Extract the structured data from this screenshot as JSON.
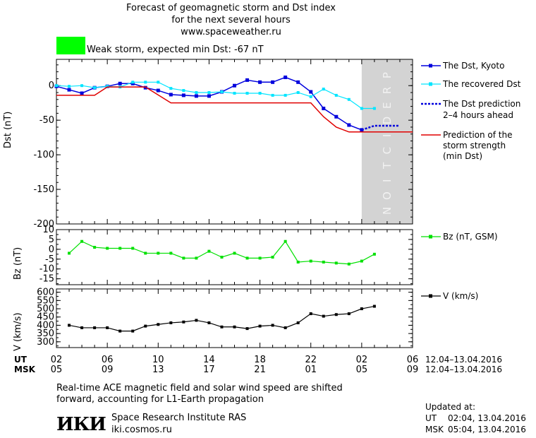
{
  "header": {
    "title_lines": [
      "Forecast of geomagnetic storm and Dst index",
      "for the next several hours",
      "www.spaceweather.ru"
    ],
    "storm_text": "Weak storm, expected min Dst: -67 nT"
  },
  "colors": {
    "dst_kyoto": "#0000dd",
    "dst_recovered": "#00e5ff",
    "dst_prediction": "#0000dd",
    "storm_strength": "#e00000",
    "bz": "#00e000",
    "v": "#000000",
    "prediction_band": "#d3d3d3",
    "storm_swatch": "#00ff00"
  },
  "prediction_label": "PREDICTION",
  "legend": {
    "dst_kyoto": "The Dst, Kyoto",
    "dst_recovered": "The recovered Dst",
    "dst_prediction_1": "The Dst prediction",
    "dst_prediction_2": "2–4 hours ahead",
    "storm_1": "Prediction of the",
    "storm_2": "storm strength",
    "storm_3": "(min Dst)",
    "bz": "Bz (nT, GSM)",
    "v": "V (km/s)"
  },
  "time_axis": {
    "ut_label": "UT",
    "msk_label": "MSK",
    "ut_ticks": [
      "02",
      "06",
      "10",
      "14",
      "18",
      "22",
      "02",
      "06"
    ],
    "msk_ticks": [
      "05",
      "09",
      "13",
      "17",
      "21",
      "01",
      "05",
      "09"
    ],
    "ut_range": "12.04–13.04.2016",
    "msk_range": "12.04–13.04.2016"
  },
  "footer": {
    "note_1": "Real-time ACE magnetic field and solar wind speed are shifted",
    "note_2": "forward, accounting for L1-Earth propagation",
    "logo": "ИКИ",
    "institute": "Space Research Institute RAS",
    "site": "iki.cosmos.ru",
    "updated_label": "Updated at:",
    "updated_ut_label": "UT",
    "updated_ut": "02:04, 13.04.2016",
    "updated_msk_label": "MSK",
    "updated_msk": "05:04, 13.04.2016"
  },
  "chart_data": [
    {
      "type": "line",
      "ylabel": "Dst (nT)",
      "x_range_hours_ut": [
        2,
        30
      ],
      "prediction_from_hour": 26.0,
      "ylim": [
        -200,
        38
      ],
      "yticks": [
        0,
        -50,
        -100,
        -150,
        -200
      ],
      "series": [
        {
          "name": "The Dst, Kyoto",
          "x": [
            2,
            3,
            4,
            5,
            6,
            7,
            8,
            9,
            10,
            11,
            12,
            13,
            14,
            15,
            16,
            17,
            18,
            19,
            20,
            21,
            22,
            23,
            24,
            25,
            26
          ],
          "values": [
            -1,
            -6,
            -11,
            -3,
            -1,
            3,
            3,
            -3,
            -7,
            -13,
            -14,
            -15,
            -15,
            -9,
            0,
            8,
            5,
            5,
            12,
            5,
            -9,
            -33,
            -45,
            -57,
            -64
          ]
        },
        {
          "name": "The recovered Dst",
          "x": [
            2,
            3,
            4,
            5,
            6,
            7,
            8,
            9,
            10,
            11,
            12,
            13,
            14,
            15,
            16,
            17,
            18,
            19,
            20,
            21,
            22,
            23,
            24,
            25,
            26,
            27
          ],
          "values": [
            0,
            -1,
            0,
            -3,
            -1,
            -2,
            5,
            5,
            5,
            -4,
            -7,
            -10,
            -10,
            -9,
            -11,
            -11,
            -11,
            -14,
            -14,
            -10,
            -16,
            -5,
            -14,
            -20,
            -33,
            -33
          ]
        },
        {
          "name": "The Dst prediction",
          "x": [
            26,
            27,
            28,
            29
          ],
          "values": [
            -64,
            -58,
            -58,
            -58
          ]
        },
        {
          "name": "Prediction of the storm strength (min Dst)",
          "x": [
            2,
            5,
            6,
            9,
            11,
            22,
            23,
            24,
            25,
            26,
            30
          ],
          "values": [
            -14,
            -14,
            -2,
            -2,
            -25,
            -25,
            -45,
            -60,
            -67,
            -67,
            -67
          ]
        }
      ]
    },
    {
      "type": "line",
      "ylabel": "Bz (nT)",
      "ylim": [
        -18,
        10
      ],
      "yticks": [
        10,
        5,
        0,
        -5,
        -10,
        -15
      ],
      "series": [
        {
          "name": "Bz (nT, GSM)",
          "x": [
            3,
            4,
            5,
            6,
            7,
            8,
            9,
            10,
            11,
            12,
            13,
            14,
            15,
            16,
            17,
            18,
            19,
            20,
            21,
            22,
            23,
            24,
            25,
            26,
            27
          ],
          "values": [
            -2,
            4,
            1,
            0.5,
            0.5,
            0.5,
            -2,
            -2,
            -2,
            -4.5,
            -4.5,
            -1,
            -4,
            -2,
            -4.5,
            -4.5,
            -4,
            4,
            -6.5,
            -6,
            -6.5,
            -7,
            -7.5,
            -6,
            -2.5
          ]
        }
      ]
    },
    {
      "type": "line",
      "ylabel": "V (km/s)",
      "ylim": [
        265,
        620
      ],
      "yticks": [
        600,
        550,
        500,
        450,
        400,
        350,
        300
      ],
      "series": [
        {
          "name": "V (km/s)",
          "x": [
            3,
            4,
            5,
            6,
            7,
            8,
            9,
            10,
            11,
            12,
            13,
            14,
            15,
            16,
            17,
            18,
            19,
            20,
            21,
            22,
            23,
            24,
            25,
            26,
            27
          ],
          "values": [
            400,
            385,
            385,
            385,
            365,
            365,
            395,
            405,
            415,
            420,
            430,
            415,
            390,
            390,
            380,
            395,
            400,
            385,
            415,
            470,
            455,
            465,
            470,
            500,
            515
          ]
        }
      ]
    }
  ]
}
